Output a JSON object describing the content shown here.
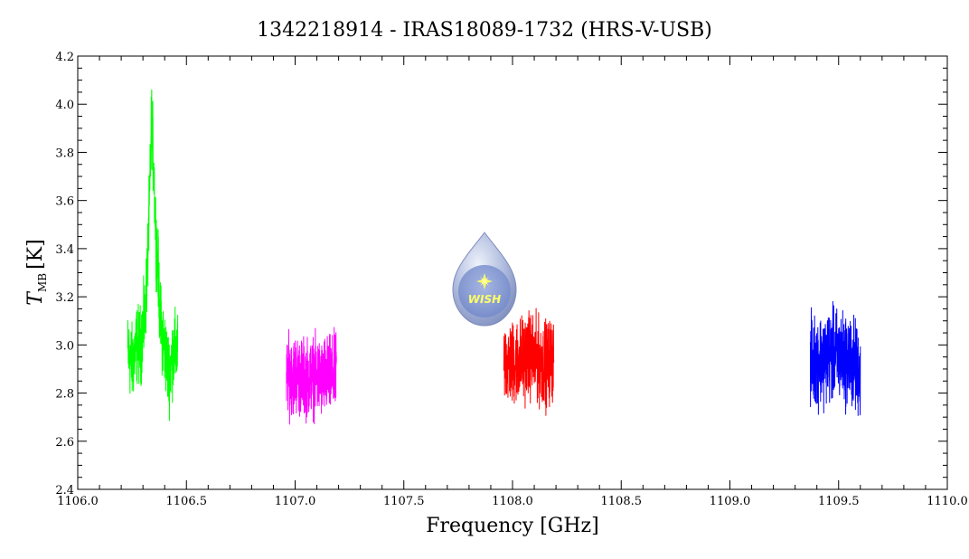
{
  "chart_data": {
    "type": "line",
    "title": "1342218914 - IRAS18089-1732 (HRS-V-USB)",
    "xlabel": "Frequency [GHz]",
    "ylabel_main": "T",
    "ylabel_sub": "MB",
    "ylabel_unit": "[K]",
    "xlim": [
      1106.0,
      1110.0
    ],
    "ylim": [
      2.4,
      4.2
    ],
    "x_ticks": [
      1106.0,
      1106.5,
      1107.0,
      1107.5,
      1108.0,
      1108.5,
      1109.0,
      1109.5,
      1110.0
    ],
    "x_tick_labels": [
      "1106.0",
      "1106.5",
      "1107.0",
      "1107.5",
      "1108.0",
      "1108.5",
      "1109.0",
      "1109.5",
      "1110.0"
    ],
    "y_ticks": [
      2.4,
      2.6,
      2.8,
      3.0,
      3.2,
      3.4,
      3.6,
      3.8,
      4.0,
      4.2
    ],
    "y_tick_labels": [
      "2.4",
      "2.6",
      "2.8",
      "3.0",
      "3.2",
      "3.4",
      "3.6",
      "3.8",
      "4.0",
      "4.2"
    ],
    "grid": false,
    "legend": "none",
    "series": [
      {
        "color": "#00ff00",
        "x": [
          1106.23,
          1106.25,
          1106.27,
          1106.29,
          1106.31,
          1106.32,
          1106.33,
          1106.34,
          1106.35,
          1106.36,
          1106.37,
          1106.38,
          1106.4,
          1106.42,
          1106.44,
          1106.46
        ],
        "y": [
          2.97,
          2.92,
          3.0,
          3.0,
          3.12,
          3.32,
          3.58,
          3.95,
          3.72,
          3.45,
          3.3,
          3.1,
          2.98,
          2.88,
          2.97,
          2.98
        ],
        "amp": 0.13
      },
      {
        "color": "#ff00ff",
        "x": [
          1106.96,
          1107.0,
          1107.04,
          1107.08,
          1107.12,
          1107.16,
          1107.19
        ],
        "y": [
          2.87,
          2.88,
          2.86,
          2.87,
          2.86,
          2.87,
          2.88
        ],
        "amp": 0.13
      },
      {
        "color": "#ff0000",
        "x": [
          1107.96,
          1108.0,
          1108.04,
          1108.08,
          1108.12,
          1108.16,
          1108.19
        ],
        "y": [
          2.93,
          2.92,
          2.94,
          2.96,
          2.93,
          2.92,
          2.95
        ],
        "amp": 0.14
      },
      {
        "color": "#0000ff",
        "x": [
          1109.37,
          1109.41,
          1109.45,
          1109.49,
          1109.53,
          1109.57,
          1109.6
        ],
        "y": [
          2.93,
          2.94,
          2.95,
          2.96,
          2.94,
          2.92,
          2.88
        ],
        "amp": 0.15
      }
    ]
  },
  "logo": {
    "text": "WISH",
    "colors": {
      "drop_top": "#d8e0f0",
      "drop_bottom": "#8f9ec8",
      "star": "#ffff66"
    }
  }
}
